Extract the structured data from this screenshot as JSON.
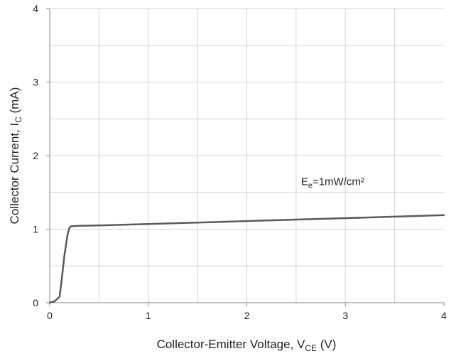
{
  "chart_data": {
    "type": "line",
    "xlabel": {
      "main": "Collector-Emitter Voltage,  V",
      "sub": "CE",
      "tail": " (V)"
    },
    "ylabel": {
      "main": "Collector Current, I",
      "sub": "C",
      "tail": " (mA)"
    },
    "xlim": [
      0,
      4
    ],
    "ylim": [
      0,
      4
    ],
    "x_ticks": [
      0,
      1,
      2,
      3,
      4
    ],
    "y_ticks": [
      0,
      1,
      2,
      3,
      4
    ],
    "x_minor_step": 0.5,
    "y_minor_step": 0.5,
    "grid": true,
    "series": [
      {
        "color": "#5a5a5a",
        "x": [
          0,
          0.05,
          0.1,
          0.12,
          0.15,
          0.18,
          0.2,
          0.22,
          0.3,
          0.5,
          1,
          1.5,
          2,
          2.5,
          3,
          3.5,
          4
        ],
        "y": [
          0,
          0.02,
          0.08,
          0.3,
          0.65,
          0.92,
          1.02,
          1.04,
          1.045,
          1.05,
          1.07,
          1.09,
          1.11,
          1.13,
          1.15,
          1.17,
          1.19
        ]
      }
    ],
    "annotations": [
      {
        "text_main": "E",
        "text_sub": "e",
        "text_tail": "=1mW/cm²",
        "x": 2.55,
        "y": 1.6
      }
    ]
  }
}
